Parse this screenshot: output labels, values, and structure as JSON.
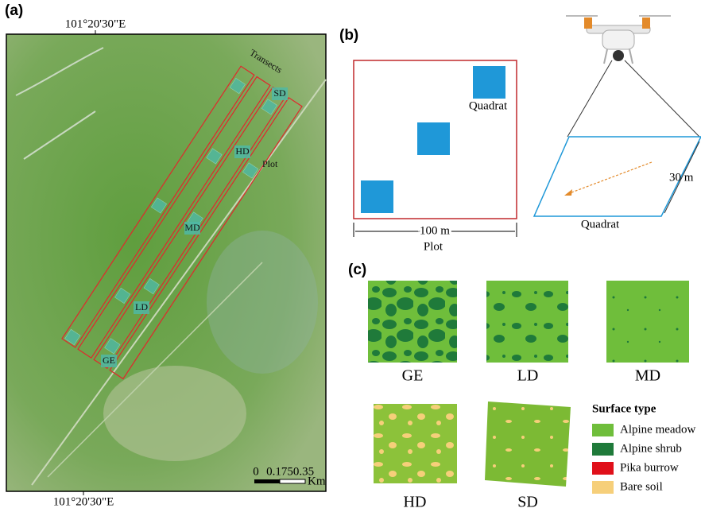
{
  "panels": {
    "a": {
      "label": "(a)",
      "top_coordinate": "101°20'30\"E",
      "bottom_coordinate": "101°20'30\"E",
      "transects_label": "Transects",
      "plot_label": "Plot",
      "sites": [
        "SD",
        "HD",
        "MD",
        "LD",
        "GE"
      ],
      "scale_bar": {
        "ticks": [
          "0",
          "0.175",
          "0.35"
        ],
        "unit": "Km"
      }
    },
    "b": {
      "label": "(b)",
      "quadrat_label": "Quadrat",
      "plot_width": "100 m",
      "plot_label": "Plot",
      "quadrat_side": "30 m",
      "drone_quadrat_label": "Quadrat"
    },
    "c": {
      "label": "(c)",
      "images": [
        "GE",
        "LD",
        "MD",
        "HD",
        "SD"
      ],
      "legend": {
        "title": "Surface type",
        "items": [
          {
            "name": "Alpine meadow",
            "color": "#6fbe3b"
          },
          {
            "name": "Alpine shrub",
            "color": "#1f7a3a"
          },
          {
            "name": "Pika burrow",
            "color": "#e0101a"
          },
          {
            "name": "Bare soil",
            "color": "#f6cf7a"
          }
        ]
      }
    }
  }
}
